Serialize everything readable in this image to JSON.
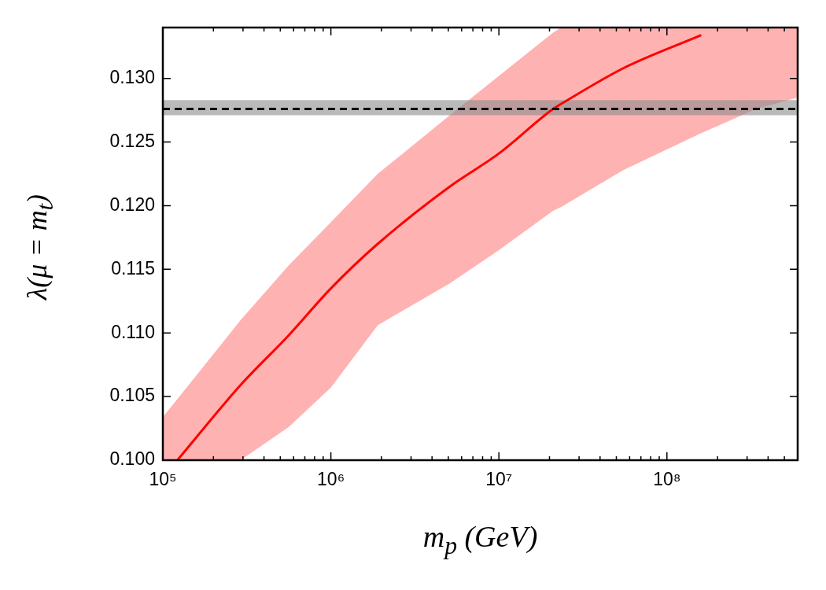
{
  "chart_data": {
    "type": "line",
    "xlabel": "m$_{p}$ (GeV)",
    "ylabel": "λ(μ = m$_{t}$)",
    "log": "x",
    "grid": false,
    "legend": false,
    "marker": "none",
    "xlim": [
      100000,
      600000000
    ],
    "ylim": [
      0.1,
      0.134
    ],
    "xticks": [
      {
        "value": 100000,
        "label": "10⁵"
      },
      {
        "value": 200000,
        "label": null
      },
      {
        "value": 300000,
        "label": null
      },
      {
        "value": 400000,
        "label": null
      },
      {
        "value": 500000,
        "label": null
      },
      {
        "value": 600000,
        "label": null
      },
      {
        "value": 700000,
        "label": null
      },
      {
        "value": 800000,
        "label": null
      },
      {
        "value": 900000,
        "label": null
      },
      {
        "value": 1000000,
        "label": "10⁶"
      },
      {
        "value": 2000000,
        "label": null
      },
      {
        "value": 3000000,
        "label": null
      },
      {
        "value": 4000000,
        "label": null
      },
      {
        "value": 5000000,
        "label": null
      },
      {
        "value": 6000000,
        "label": null
      },
      {
        "value": 7000000,
        "label": null
      },
      {
        "value": 8000000,
        "label": null
      },
      {
        "value": 9000000,
        "label": null
      },
      {
        "value": 10000000,
        "label": "10⁷"
      },
      {
        "value": 20000000,
        "label": null
      },
      {
        "value": 30000000,
        "label": null
      },
      {
        "value": 40000000,
        "label": null
      },
      {
        "value": 50000000,
        "label": null
      },
      {
        "value": 60000000,
        "label": null
      },
      {
        "value": 70000000,
        "label": null
      },
      {
        "value": 80000000,
        "label": null
      },
      {
        "value": 90000000,
        "label": null
      },
      {
        "value": 100000000,
        "label": "10⁸"
      },
      {
        "value": 200000000,
        "label": null
      },
      {
        "value": 300000000,
        "label": null
      },
      {
        "value": 400000000,
        "label": null
      },
      {
        "value": 500000000,
        "label": null
      },
      {
        "value": 600000000,
        "label": null
      }
    ],
    "yticks": [
      {
        "value": 0.1,
        "label": "0.100"
      },
      {
        "value": 0.105,
        "label": "0.105"
      },
      {
        "value": 0.11,
        "label": "0.110"
      },
      {
        "value": 0.115,
        "label": "0.115"
      },
      {
        "value": 0.12,
        "label": "0.120"
      },
      {
        "value": 0.125,
        "label": "0.125"
      },
      {
        "value": 0.13,
        "label": "0.130"
      }
    ],
    "series": [
      {
        "color": "#ff0000",
        "x": [
          100000,
          122000,
          290000,
          560000,
          1000000,
          1900000,
          5100000,
          10000000,
          21000000,
          23500000,
          55000000,
          160000000,
          340000000,
          600000000
        ],
        "values": [
          null,
          0.1,
          0.1059,
          0.1098,
          0.1135,
          0.117,
          0.1215,
          0.1241,
          0.1276,
          0.128,
          0.1308,
          0.1334,
          null,
          null
        ],
        "lower": [
          0.1,
          0.1,
          0.1,
          0.1026,
          0.1057,
          0.1106,
          0.1139,
          0.1165,
          0.1196,
          0.1199,
          0.1228,
          0.1257,
          0.1276,
          0.1285
        ],
        "upper": [
          0.1034,
          0.1048,
          0.111,
          0.1153,
          0.1187,
          0.1225,
          0.1271,
          0.1302,
          0.1336,
          0.134,
          0.134,
          0.134,
          0.134,
          0.134
        ]
      }
    ],
    "bands": [
      {
        "axis": "y",
        "from": 0.1271,
        "to": 0.1283,
        "color": "#8c8c8c"
      }
    ],
    "ref_lines": [
      {
        "axis": "y",
        "value": 0.1276,
        "color": "#000000",
        "line_style": "dashed"
      }
    ]
  }
}
